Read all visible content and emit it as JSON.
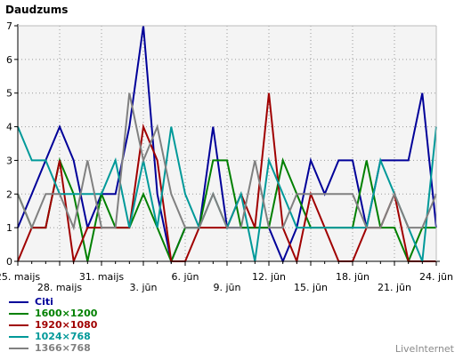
{
  "brand": "LiveInternet",
  "chart_data": {
    "type": "line",
    "title": "Daudzums",
    "ylim": [
      0,
      7
    ],
    "yticks": [
      0,
      1,
      2,
      3,
      4,
      5,
      6,
      7
    ],
    "grid": true,
    "x_labels_upper": [
      "25. maijs",
      "31. maijs",
      "6. jūn",
      "12. jūn",
      "18. jūn",
      "24. jūn"
    ],
    "x_labels_lower": [
      "28. maijs",
      "3. jūn",
      "9. jūn",
      "15. jūn",
      "21. jūn"
    ],
    "categories": [
      "25.05",
      "26.05",
      "27.05",
      "28.05",
      "29.05",
      "30.05",
      "31.05",
      "01.06",
      "02.06",
      "03.06",
      "04.06",
      "05.06",
      "06.06",
      "07.06",
      "08.06",
      "09.06",
      "10.06",
      "11.06",
      "12.06",
      "13.06",
      "14.06",
      "15.06",
      "16.06",
      "17.06",
      "18.06",
      "19.06",
      "20.06",
      "21.06",
      "22.06",
      "23.06",
      "24.06"
    ],
    "legend_position": "bottom-left",
    "series": [
      {
        "name": "Citi",
        "color": "#000099",
        "values": [
          1,
          2,
          3,
          4,
          3,
          1,
          2,
          2,
          4,
          7,
          2,
          0,
          1,
          1,
          4,
          1,
          1,
          1,
          1,
          0,
          1,
          3,
          2,
          3,
          3,
          1,
          3,
          3,
          3,
          5,
          1
        ]
      },
      {
        "name": "1600×1200",
        "color": "#008000",
        "values": [
          2,
          1,
          1,
          3,
          2,
          0,
          2,
          1,
          1,
          2,
          1,
          0,
          1,
          1,
          3,
          3,
          1,
          1,
          1,
          3,
          2,
          1,
          1,
          1,
          1,
          3,
          1,
          1,
          0,
          1,
          1
        ]
      },
      {
        "name": "1920×1080",
        "color": "#a00000",
        "values": [
          0,
          1,
          1,
          3,
          0,
          1,
          1,
          1,
          1,
          4,
          3,
          0,
          0,
          1,
          1,
          1,
          2,
          1,
          5,
          1,
          0,
          2,
          1,
          0,
          0,
          1,
          1,
          2,
          0,
          0,
          0
        ]
      },
      {
        "name": "1024×768",
        "color": "#009999",
        "values": [
          4,
          3,
          3,
          2,
          2,
          2,
          2,
          3,
          1,
          3,
          1,
          4,
          2,
          1,
          2,
          1,
          2,
          0,
          3,
          2,
          1,
          1,
          1,
          1,
          1,
          1,
          3,
          2,
          1,
          0,
          4
        ]
      },
      {
        "name": "1366×768",
        "color": "#808080",
        "values": [
          2,
          1,
          2,
          2,
          1,
          3,
          1,
          1,
          5,
          3,
          4,
          2,
          1,
          1,
          2,
          1,
          1,
          3,
          1,
          1,
          2,
          2,
          2,
          2,
          2,
          1,
          1,
          2,
          1,
          1,
          2
        ]
      }
    ]
  }
}
